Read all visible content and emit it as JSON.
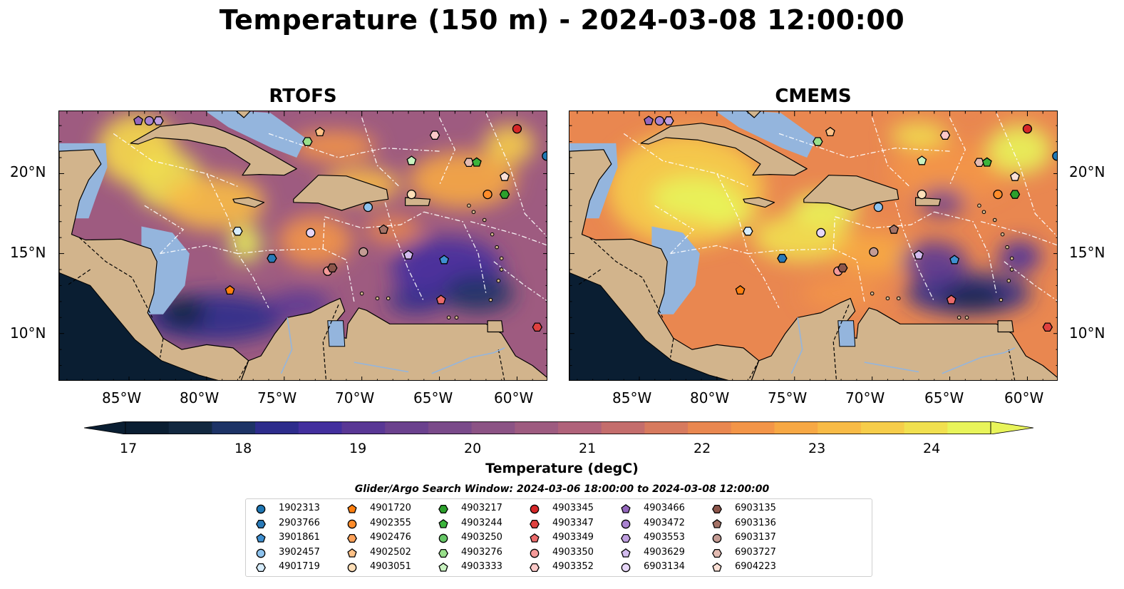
{
  "title": "Temperature (150 m) - 2024-03-08 12:00:00",
  "panels": [
    {
      "title": "RTOFS",
      "tone": "warm"
    },
    {
      "title": "CMEMS",
      "tone": "hot"
    }
  ],
  "axes": {
    "lon_ticks": [
      "85°W",
      "80°W",
      "75°W",
      "70°W",
      "65°W",
      "60°W"
    ],
    "lat_ticks": [
      "20°N",
      "15°N",
      "10°N"
    ],
    "lon_range": [
      -89.5,
      -58.0
    ],
    "lat_range": [
      7.0,
      23.9
    ]
  },
  "colorbar": {
    "ticks": [
      "17",
      "18",
      "19",
      "20",
      "21",
      "22",
      "23",
      "24"
    ],
    "label": "Temperature (degC)",
    "range": [
      16.75,
      24.5
    ],
    "colors": [
      "#0a1e32",
      "#122840",
      "#1d3366",
      "#2d2c8c",
      "#432f9e",
      "#593795",
      "#6b418e",
      "#7a4a8a",
      "#8c5385",
      "#9e5b80",
      "#b0627a",
      "#c46d6c",
      "#d77a5e",
      "#e98750",
      "#f39548",
      "#f7a844",
      "#f8bb46",
      "#f6cd4a",
      "#f1e04f",
      "#e8f45a"
    ],
    "extend": "both"
  },
  "legend": {
    "title": "Glider/Argo Search Window: 2024-03-06 18:00:00 to 2024-03-08 12:00:00",
    "items": [
      {
        "id": "1902313",
        "shape": "circle",
        "color": "#1f77b4"
      },
      {
        "id": "2903766",
        "shape": "hexagon",
        "color": "#2a7ab8"
      },
      {
        "id": "3901861",
        "shape": "pentagon",
        "color": "#3f8fd0"
      },
      {
        "id": "3902457",
        "shape": "circle",
        "color": "#8ec3ee"
      },
      {
        "id": "4901719",
        "shape": "hexagon",
        "color": "#d6ecfb"
      },
      {
        "id": "4901720",
        "shape": "pentagon",
        "color": "#ff7f0e"
      },
      {
        "id": "4902355",
        "shape": "circle",
        "color": "#ff8c2a"
      },
      {
        "id": "4902476",
        "shape": "hexagon",
        "color": "#ffa25a"
      },
      {
        "id": "4902502",
        "shape": "pentagon",
        "color": "#ffc186"
      },
      {
        "id": "4903051",
        "shape": "circle",
        "color": "#ffdfb8"
      },
      {
        "id": "4903217",
        "shape": "hexagon",
        "color": "#2ca02c"
      },
      {
        "id": "4903244",
        "shape": "pentagon",
        "color": "#3cb43c"
      },
      {
        "id": "4903250",
        "shape": "circle",
        "color": "#66c766"
      },
      {
        "id": "4903276",
        "shape": "hexagon",
        "color": "#98df8a"
      },
      {
        "id": "4903333",
        "shape": "pentagon",
        "color": "#c9f2c0"
      },
      {
        "id": "4903345",
        "shape": "circle",
        "color": "#d62728"
      },
      {
        "id": "4903347",
        "shape": "hexagon",
        "color": "#e0413f"
      },
      {
        "id": "4903349",
        "shape": "pentagon",
        "color": "#eb6a6a"
      },
      {
        "id": "4903350",
        "shape": "circle",
        "color": "#f59a99"
      },
      {
        "id": "4903352",
        "shape": "hexagon",
        "color": "#fbc9c8"
      },
      {
        "id": "4903466",
        "shape": "pentagon",
        "color": "#9467bd"
      },
      {
        "id": "4903472",
        "shape": "circle",
        "color": "#a982d0"
      },
      {
        "id": "4903553",
        "shape": "hexagon",
        "color": "#bf9fe0"
      },
      {
        "id": "4903629",
        "shape": "pentagon",
        "color": "#d2bbee"
      },
      {
        "id": "6903134",
        "shape": "circle",
        "color": "#e7d7f8"
      },
      {
        "id": "6903135",
        "shape": "hexagon",
        "color": "#8c564b"
      },
      {
        "id": "6903136",
        "shape": "pentagon",
        "color": "#a47266"
      },
      {
        "id": "6903137",
        "shape": "circle",
        "color": "#c49c94"
      },
      {
        "id": "6903727",
        "shape": "hexagon",
        "color": "#e3bbb2"
      },
      {
        "id": "6904223",
        "shape": "pentagon",
        "color": "#fbe0d6"
      }
    ]
  },
  "floats": [
    {
      "shape": "pentagon",
      "color": "#9467bd",
      "lon": -84.4,
      "lat": 23.3
    },
    {
      "shape": "circle",
      "color": "#a982d0",
      "lon": -83.7,
      "lat": 23.3
    },
    {
      "shape": "hexagon",
      "color": "#bf9fe0",
      "lon": -83.1,
      "lat": 23.3
    },
    {
      "shape": "pentagon",
      "color": "#ffc186",
      "lon": -72.7,
      "lat": 22.6
    },
    {
      "shape": "hexagon",
      "color": "#98df8a",
      "lon": -73.5,
      "lat": 22.0
    },
    {
      "shape": "hexagon",
      "color": "#fbc9c8",
      "lon": -65.3,
      "lat": 22.4
    },
    {
      "shape": "circle",
      "color": "#d62728",
      "lon": -60.0,
      "lat": 22.8
    },
    {
      "shape": "pentagon",
      "color": "#c9f2c0",
      "lon": -66.8,
      "lat": 20.8
    },
    {
      "shape": "hexagon",
      "color": "#e3bbb2",
      "lon": -63.1,
      "lat": 20.7
    },
    {
      "shape": "pentagon",
      "color": "#3cb43c",
      "lon": -62.6,
      "lat": 20.7
    },
    {
      "shape": "pentagon",
      "color": "#fbe0d6",
      "lon": -60.8,
      "lat": 19.8
    },
    {
      "shape": "circle",
      "color": "#1f77b4",
      "lon": -58.1,
      "lat": 21.1
    },
    {
      "shape": "circle",
      "color": "#ffdfb8",
      "lon": -66.8,
      "lat": 18.7
    },
    {
      "shape": "circle",
      "color": "#ff8c2a",
      "lon": -61.9,
      "lat": 18.7
    },
    {
      "shape": "hexagon",
      "color": "#2ca02c",
      "lon": -60.8,
      "lat": 18.7
    },
    {
      "shape": "circle",
      "color": "#8ec3ee",
      "lon": -69.6,
      "lat": 17.9
    },
    {
      "shape": "hexagon",
      "color": "#d6ecfb",
      "lon": -78.0,
      "lat": 16.4
    },
    {
      "shape": "circle",
      "color": "#e7d7f8",
      "lon": -73.3,
      "lat": 16.3
    },
    {
      "shape": "pentagon",
      "color": "#a47266",
      "lon": -68.6,
      "lat": 16.5
    },
    {
      "shape": "hexagon",
      "color": "#2a7ab8",
      "lon": -75.8,
      "lat": 14.7
    },
    {
      "shape": "circle",
      "color": "#c49c94",
      "lon": -69.9,
      "lat": 15.1
    },
    {
      "shape": "pentagon",
      "color": "#d2bbee",
      "lon": -67.0,
      "lat": 14.9
    },
    {
      "shape": "pentagon",
      "color": "#3f8fd0",
      "lon": -64.7,
      "lat": 14.6
    },
    {
      "shape": "circle",
      "color": "#f59a99",
      "lon": -72.2,
      "lat": 13.9
    },
    {
      "shape": "hexagon",
      "color": "#8c564b",
      "lon": -71.9,
      "lat": 14.1
    },
    {
      "shape": "pentagon",
      "color": "#ff7f0e",
      "lon": -78.5,
      "lat": 12.7
    },
    {
      "shape": "pentagon",
      "color": "#eb6a6a",
      "lon": -64.9,
      "lat": 12.1
    },
    {
      "shape": "hexagon",
      "color": "#e0413f",
      "lon": -58.7,
      "lat": 10.4
    }
  ]
}
